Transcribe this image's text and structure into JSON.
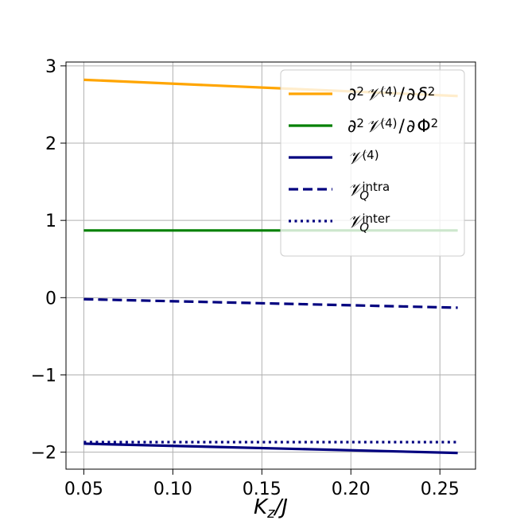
{
  "chart_data": {
    "type": "line",
    "xlabel": "K_z/J",
    "ylabel": "",
    "xlim": [
      0.04,
      0.27
    ],
    "ylim": [
      -2.22,
      3.05
    ],
    "grid": true,
    "legend_placement": "top-right",
    "x_ticks": [
      {
        "v": 0.05,
        "label": "0.05"
      },
      {
        "v": 0.1,
        "label": "0.10"
      },
      {
        "v": 0.15,
        "label": "0.15"
      },
      {
        "v": 0.2,
        "label": "0.20"
      },
      {
        "v": 0.25,
        "label": "0.25"
      }
    ],
    "y_ticks": [
      {
        "v": 3,
        "label": "3"
      },
      {
        "v": 2,
        "label": "2"
      },
      {
        "v": 1,
        "label": "1"
      },
      {
        "v": 0,
        "label": "0"
      },
      {
        "v": -1,
        "label": "−1"
      },
      {
        "v": -2,
        "label": "−2"
      }
    ],
    "series": [
      {
        "key": "d2_delta",
        "name": "∂²𝒱⁽⁴⁾/∂δ²",
        "color": "#ffa500",
        "style": "solid",
        "x": [
          0.05,
          0.26
        ],
        "y": [
          2.82,
          2.61
        ]
      },
      {
        "key": "d2_phi",
        "name": "∂²𝒱⁽⁴⁾/∂Φ²",
        "color": "#008000",
        "style": "solid",
        "x": [
          0.05,
          0.26
        ],
        "y": [
          0.87,
          0.87
        ]
      },
      {
        "key": "v4",
        "name": "𝒱⁽⁴⁾",
        "color": "#00007f",
        "style": "solid",
        "x": [
          0.05,
          0.26
        ],
        "y": [
          -1.89,
          -2.01
        ]
      },
      {
        "key": "vq_intra",
        "name": "𝒱_Q^intra",
        "color": "#00007f",
        "style": "dashed",
        "x": [
          0.05,
          0.26
        ],
        "y": [
          -0.02,
          -0.13
        ]
      },
      {
        "key": "vq_inter",
        "name": "𝒱_Q^inter",
        "color": "#00007f",
        "style": "dotted",
        "x": [
          0.05,
          0.26
        ],
        "y": [
          -1.87,
          -1.87
        ]
      }
    ]
  }
}
